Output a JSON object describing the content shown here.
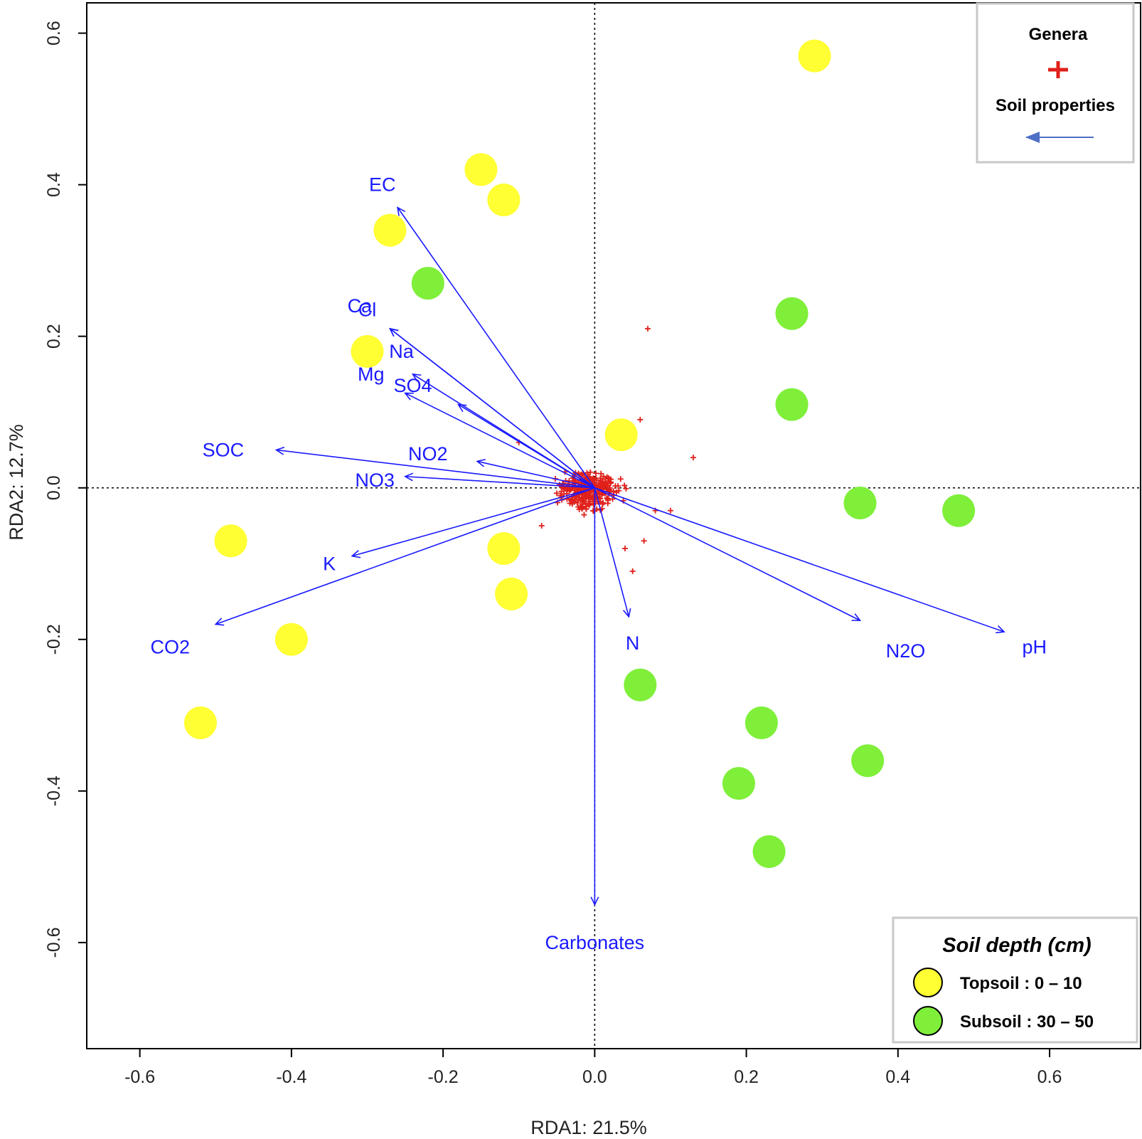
{
  "chart_data": {
    "type": "scatter",
    "title": "",
    "xlabel": "RDA1: 21.5%",
    "ylabel": "RDA2: 12.7%",
    "xlim": [
      -0.67,
      0.72
    ],
    "ylim": [
      -0.74,
      0.64
    ],
    "x_ticks": [
      -0.6,
      -0.4,
      -0.2,
      0.0,
      0.2,
      0.4,
      0.6
    ],
    "y_ticks": [
      -0.6,
      -0.4,
      -0.2,
      0.0,
      0.2,
      0.4,
      0.6
    ],
    "x_tick_labels": [
      "-0.6",
      "-0.4",
      "-0.2",
      "0.0",
      "0.2",
      "0.4",
      "0.6"
    ],
    "y_tick_labels": [
      "-0.6",
      "-0.4",
      "-0.2",
      "0.0",
      "0.2",
      "0.4",
      "0.6"
    ],
    "colors": {
      "topsoil": "#ffff33",
      "subsoil": "#7fef3a",
      "vector": "#1a1aff",
      "genera": "#e0201a"
    },
    "sites": [
      {
        "group": "Topsoil",
        "x": 0.29,
        "y": 0.57
      },
      {
        "group": "Topsoil",
        "x": -0.15,
        "y": 0.42
      },
      {
        "group": "Topsoil",
        "x": -0.12,
        "y": 0.38
      },
      {
        "group": "Topsoil",
        "x": -0.27,
        "y": 0.34
      },
      {
        "group": "Topsoil",
        "x": -0.3,
        "y": 0.18
      },
      {
        "group": "Topsoil",
        "x": 0.035,
        "y": 0.07
      },
      {
        "group": "Topsoil",
        "x": -0.48,
        "y": -0.07
      },
      {
        "group": "Topsoil",
        "x": -0.12,
        "y": -0.08
      },
      {
        "group": "Topsoil",
        "x": -0.11,
        "y": -0.14
      },
      {
        "group": "Topsoil",
        "x": -0.4,
        "y": -0.2
      },
      {
        "group": "Topsoil",
        "x": -0.52,
        "y": -0.31
      },
      {
        "group": "Subsoil",
        "x": -0.22,
        "y": 0.27
      },
      {
        "group": "Subsoil",
        "x": 0.26,
        "y": 0.23
      },
      {
        "group": "Subsoil",
        "x": 0.26,
        "y": 0.11
      },
      {
        "group": "Subsoil",
        "x": 0.35,
        "y": -0.02
      },
      {
        "group": "Subsoil",
        "x": 0.48,
        "y": -0.03
      },
      {
        "group": "Subsoil",
        "x": 0.06,
        "y": -0.26
      },
      {
        "group": "Subsoil",
        "x": 0.22,
        "y": -0.31
      },
      {
        "group": "Subsoil",
        "x": 0.36,
        "y": -0.36
      },
      {
        "group": "Subsoil",
        "x": 0.19,
        "y": -0.39
      },
      {
        "group": "Subsoil",
        "x": 0.23,
        "y": -0.48
      }
    ],
    "vectors": [
      {
        "name": "EC",
        "x": -0.26,
        "y": 0.37,
        "lx": -0.28,
        "ly": 0.4
      },
      {
        "name": "Ca",
        "x": -0.27,
        "y": 0.21,
        "lx": -0.31,
        "ly": 0.24
      },
      {
        "name": "Cl",
        "x": -0.27,
        "y": 0.21,
        "lx": -0.3,
        "ly": 0.235
      },
      {
        "name": "Na",
        "x": -0.24,
        "y": 0.15,
        "lx": -0.255,
        "ly": 0.18
      },
      {
        "name": "Mg",
        "x": -0.25,
        "y": 0.125,
        "lx": -0.295,
        "ly": 0.15
      },
      {
        "name": "SO4",
        "x": -0.18,
        "y": 0.11,
        "lx": -0.24,
        "ly": 0.135
      },
      {
        "name": "SOC",
        "x": -0.42,
        "y": 0.05,
        "lx": -0.49,
        "ly": 0.05
      },
      {
        "name": "NO2",
        "x": -0.155,
        "y": 0.035,
        "lx": -0.22,
        "ly": 0.045
      },
      {
        "name": "NO3",
        "x": -0.25,
        "y": 0.015,
        "lx": -0.29,
        "ly": 0.01
      },
      {
        "name": "K",
        "x": -0.32,
        "y": -0.09,
        "lx": -0.35,
        "ly": -0.1
      },
      {
        "name": "CO2",
        "x": -0.5,
        "y": -0.18,
        "lx": -0.56,
        "ly": -0.21
      },
      {
        "name": "N",
        "x": 0.045,
        "y": -0.17,
        "lx": 0.05,
        "ly": -0.205
      },
      {
        "name": "N2O",
        "x": 0.35,
        "y": -0.175,
        "lx": 0.41,
        "ly": -0.215
      },
      {
        "name": "pH",
        "x": 0.54,
        "y": -0.19,
        "lx": 0.58,
        "ly": -0.21
      },
      {
        "name": "Carbonates",
        "x": 0.0,
        "y": -0.55,
        "lx": 0.0,
        "ly": -0.6
      }
    ],
    "legend_top": {
      "title1": "Genera",
      "title2": "Soil properties",
      "position": "top-right"
    },
    "legend_bottom": {
      "title": "Soil depth (cm)",
      "position": "bottom-right",
      "items": [
        {
          "label": "Topsoil : 0 – 10",
          "color": "#ffff33"
        },
        {
          "label": "Subsoil : 30 – 50",
          "color": "#7fef3a"
        }
      ]
    }
  }
}
